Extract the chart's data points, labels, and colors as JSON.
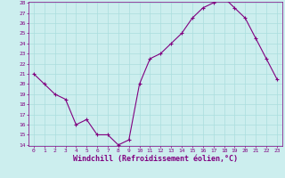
{
  "x": [
    0,
    1,
    2,
    3,
    4,
    5,
    6,
    7,
    8,
    9,
    10,
    11,
    12,
    13,
    14,
    15,
    16,
    17,
    18,
    19,
    20,
    21,
    22,
    23
  ],
  "y": [
    21,
    20,
    19,
    18.5,
    16,
    16.5,
    15,
    15,
    14,
    14.5,
    20,
    22.5,
    23,
    24,
    25,
    26.5,
    27.5,
    28,
    28.5,
    27.5,
    26.5,
    24.5,
    22.5,
    20.5
  ],
  "line_color": "#800080",
  "marker": "+",
  "marker_color": "#800080",
  "bg_color": "#cceeee",
  "grid_color": "#aadddd",
  "xlabel": "Windchill (Refroidissement éolien,°C)",
  "ylim": [
    14,
    28
  ],
  "xlim": [
    -0.5,
    23.5
  ],
  "yticks": [
    14,
    15,
    16,
    17,
    18,
    19,
    20,
    21,
    22,
    23,
    24,
    25,
    26,
    27,
    28
  ],
  "xticks": [
    0,
    1,
    2,
    3,
    4,
    5,
    6,
    7,
    8,
    9,
    10,
    11,
    12,
    13,
    14,
    15,
    16,
    17,
    18,
    19,
    20,
    21,
    22,
    23
  ],
  "font_color": "#800080",
  "tick_fontsize": 4.5,
  "label_fontsize": 6.0
}
